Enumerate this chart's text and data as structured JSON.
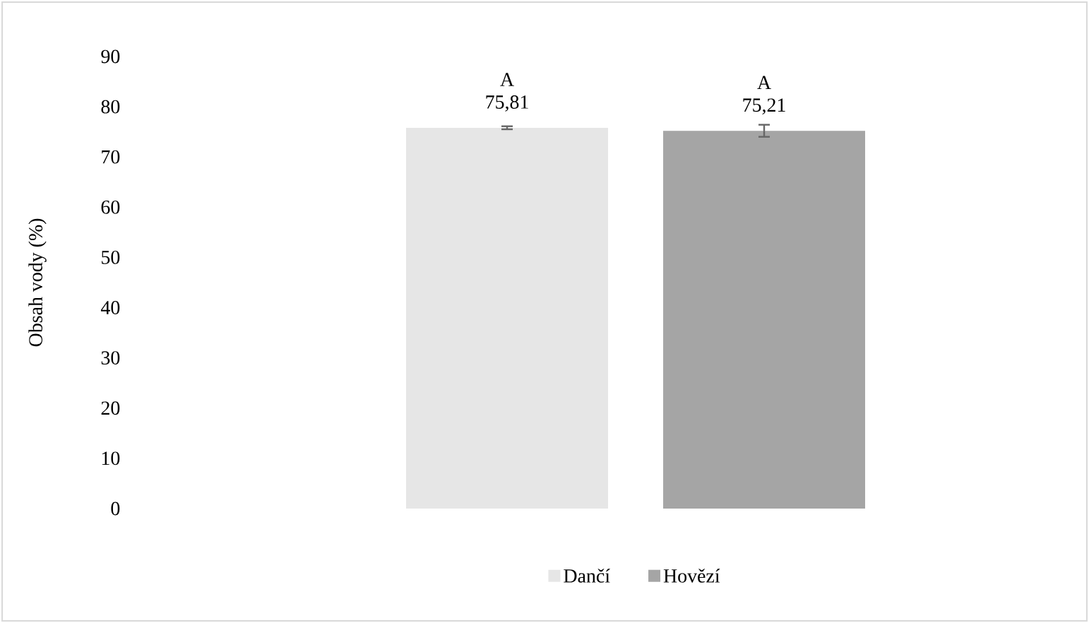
{
  "chart_data": {
    "type": "bar",
    "ylabel": "Obsah vody (%)",
    "categories": [
      null
    ],
    "series": [
      {
        "name": "Dančí",
        "color": "#e6e6e6",
        "values": [
          75.81
        ],
        "errors": [
          0.3
        ],
        "value_labels": [
          "75,81"
        ]
      },
      {
        "name": "Hovězí",
        "color": "#a5a5a5",
        "values": [
          75.21
        ],
        "errors": [
          1.2
        ],
        "value_labels": [
          "75,21"
        ]
      }
    ],
    "annotations": [
      "A",
      "A"
    ],
    "ylim": [
      0,
      90
    ],
    "yticks": [
      0,
      10,
      20,
      30,
      40,
      50,
      60,
      70,
      80,
      90
    ],
    "grid": false,
    "legend": "bottom"
  }
}
